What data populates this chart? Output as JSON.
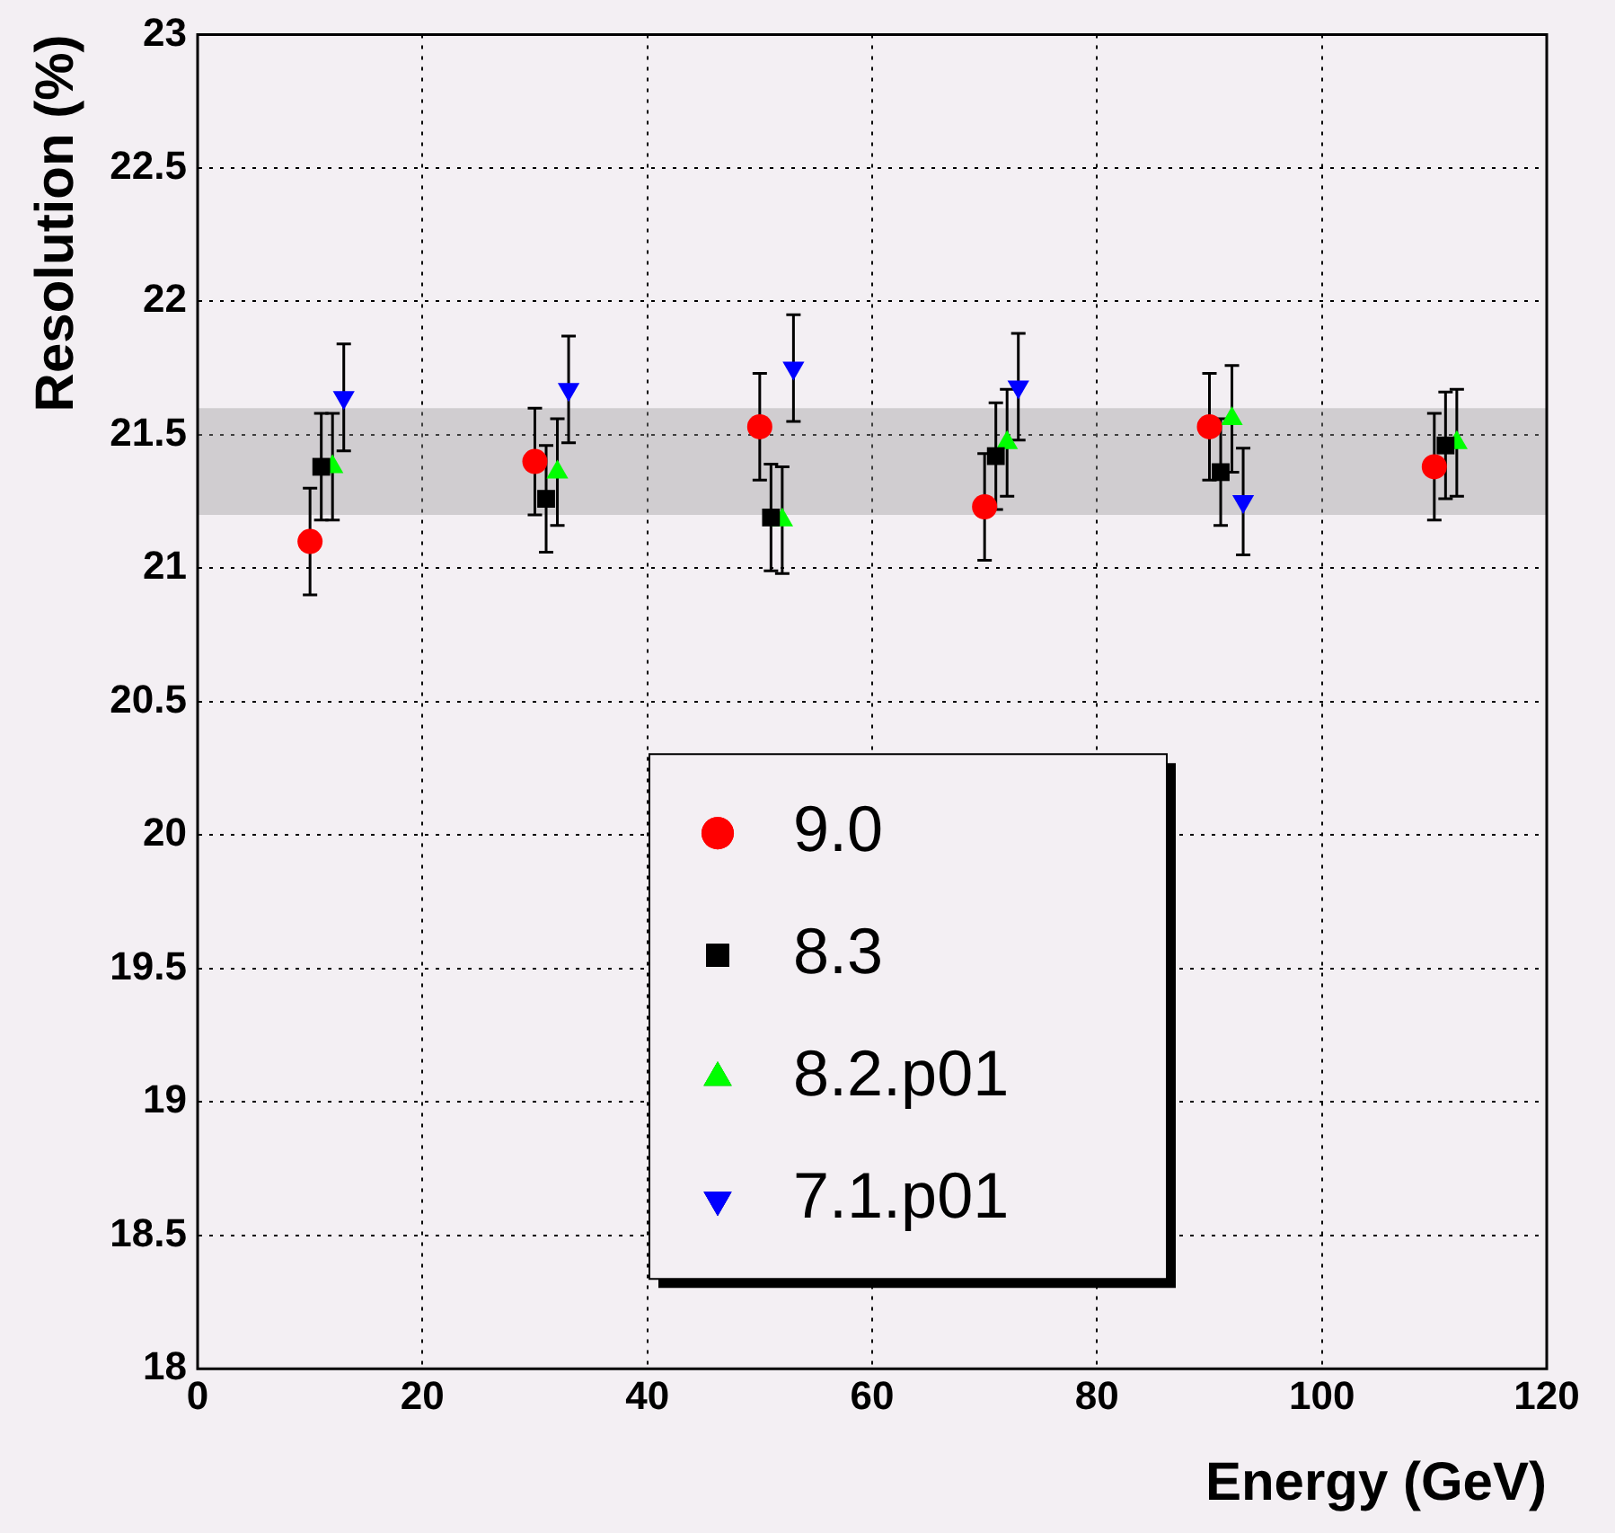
{
  "chart_data": {
    "type": "scatter",
    "xlabel": "Energy (GeV)",
    "ylabel": "Resolution (%)",
    "xlim": [
      0,
      120
    ],
    "xticks": [
      0,
      20,
      40,
      60,
      80,
      100,
      120
    ],
    "ylim": [
      18,
      23
    ],
    "yticks": [
      18,
      18.5,
      19,
      19.5,
      20,
      20.5,
      21,
      21.5,
      22,
      22.5,
      23
    ],
    "grid": true,
    "legend": "bottom",
    "bands": [
      {
        "axis": "y",
        "from": 21.2,
        "to": 21.6,
        "color": "#9a9a9a"
      }
    ],
    "series": [
      {
        "name": "9.0",
        "color": "#ff0000",
        "marker": "circle",
        "x": [
          10,
          30,
          50,
          70,
          90,
          110
        ],
        "values": [
          21.1,
          21.4,
          21.53,
          21.23,
          21.53,
          21.38
        ],
        "errors": [
          0.2,
          0.2,
          0.2,
          0.2,
          0.2,
          0.2
        ]
      },
      {
        "name": "8.3",
        "color": "#000000",
        "marker": "square",
        "x": [
          11,
          31,
          51,
          71,
          91,
          111
        ],
        "values": [
          21.38,
          21.26,
          21.19,
          21.42,
          21.36,
          21.46
        ],
        "errors": [
          0.2,
          0.2,
          0.2,
          0.2,
          0.2,
          0.2
        ]
      },
      {
        "name": "8.2.p01",
        "color": "#00ff00",
        "marker": "triangle",
        "x": [
          12,
          32,
          52,
          72,
          92,
          112
        ],
        "values": [
          21.38,
          21.36,
          21.18,
          21.47,
          21.56,
          21.47
        ],
        "errors": [
          0.2,
          0.2,
          0.2,
          0.2,
          0.2,
          0.2
        ]
      },
      {
        "name": "7.1.p01",
        "color": "#0000ff",
        "marker": "triangle-down",
        "x": [
          13,
          33,
          53,
          73,
          93
        ],
        "values": [
          21.64,
          21.67,
          21.75,
          21.68,
          21.25
        ],
        "errors": [
          0.2,
          0.2,
          0.2,
          0.2,
          0.2
        ]
      }
    ]
  }
}
